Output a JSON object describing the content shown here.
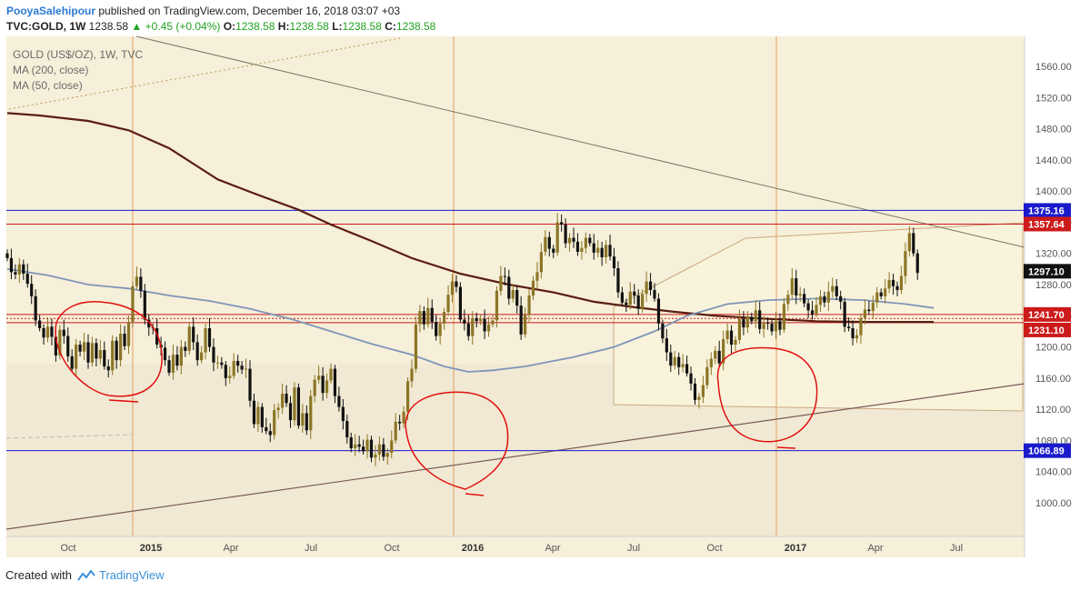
{
  "header": {
    "author": "PooyaSalehipour",
    "published": "published on TradingView.com, December 16, 2018 03:07 +03",
    "symbol": "TVC:GOLD, 1W",
    "last_price": "1238.58",
    "change": "+0.45 (+0.04%)",
    "open_label": "O:",
    "open": "1238.58",
    "high_label": "H:",
    "high": "1238.58",
    "low_label": "L:",
    "low": "1238.58",
    "close_label": "C:",
    "close": "1238.58",
    "up_arrow_icon": "triangle-up-icon"
  },
  "legend": {
    "title": "GOLD (US$/OZ), 1W, TVC",
    "ma200": "MA (200, close)",
    "ma50": "MA (50, close)"
  },
  "footer": {
    "created_with": "Created with",
    "brand": "TradingView",
    "logo_icon": "tradingview-cloud-icon"
  },
  "colors": {
    "background": "#f6efd9",
    "bull_candle": "#8b7626",
    "bear_candle": "#111111",
    "ma200": "#5a1d12",
    "ma50": "#7f95b8",
    "level_blue": "#1a1acc",
    "level_red": "#cc1a1a",
    "circle": "#e01010",
    "vline": "#e0a060"
  },
  "chart_data": {
    "type": "candlestick",
    "title": "GOLD (US$/OZ), 1W, TVC",
    "y_axis": {
      "range": [
        960,
        1600
      ],
      "ticks": [
        1000,
        1040,
        1080,
        1120,
        1160,
        1200,
        1240,
        1280,
        1320,
        1360,
        1400,
        1440,
        1480,
        1520,
        1560
      ],
      "tick_labels": [
        "1000.00",
        "1040.00",
        "1080.00",
        "1120.00",
        "1160.00",
        "1200.00",
        "1240.00",
        "1280.00",
        "1320.00",
        "1360.00",
        "1400.00",
        "1440.00",
        "1480.00",
        "1520.00",
        "1560.00"
      ]
    },
    "x_axis": {
      "ticks": [
        "Oct",
        "2015",
        "Apr",
        "Jul",
        "Oct",
        "2016",
        "Apr",
        "Jul",
        "Oct",
        "2017",
        "Apr",
        "Jul"
      ],
      "bold_ticks": [
        "2015",
        "2016",
        "2017"
      ]
    },
    "weekly_closes": [
      1314,
      1296,
      1293,
      1306,
      1294,
      1281,
      1265,
      1234,
      1224,
      1212,
      1226,
      1213,
      1189,
      1222,
      1214,
      1188,
      1172,
      1203,
      1194,
      1206,
      1180,
      1205,
      1185,
      1196,
      1175,
      1170,
      1208,
      1183,
      1217,
      1201,
      1232,
      1278,
      1290,
      1272,
      1235,
      1225,
      1224,
      1203,
      1199,
      1183,
      1167,
      1190,
      1176,
      1200,
      1195,
      1226,
      1206,
      1183,
      1193,
      1224,
      1200,
      1180,
      1180,
      1177,
      1160,
      1163,
      1182,
      1176,
      1171,
      1172,
      1131,
      1101,
      1123,
      1097,
      1092,
      1087,
      1119,
      1122,
      1140,
      1128,
      1106,
      1148,
      1099,
      1115,
      1093,
      1137,
      1158,
      1163,
      1141,
      1157,
      1172,
      1137,
      1123,
      1105,
      1084,
      1070,
      1075,
      1072,
      1066,
      1081,
      1058,
      1062,
      1075,
      1059,
      1064,
      1080,
      1104,
      1102,
      1117,
      1156,
      1172,
      1229,
      1246,
      1229,
      1250,
      1232,
      1214,
      1230,
      1245,
      1267,
      1284,
      1277,
      1235,
      1230,
      1214,
      1237,
      1233,
      1236,
      1220,
      1229,
      1234,
      1272,
      1291,
      1290,
      1262,
      1273,
      1253,
      1216,
      1241,
      1266,
      1285,
      1296,
      1322,
      1341,
      1326,
      1321,
      1360,
      1357,
      1333,
      1340,
      1335,
      1322,
      1327,
      1340,
      1333,
      1321,
      1327,
      1315,
      1331,
      1316,
      1301,
      1270,
      1257,
      1254,
      1271,
      1266,
      1249,
      1268,
      1284,
      1273,
      1262,
      1230,
      1211,
      1193,
      1176,
      1187,
      1174,
      1178,
      1166,
      1153,
      1132,
      1136,
      1151,
      1174,
      1185,
      1195,
      1179,
      1210,
      1221,
      1203,
      1209,
      1236,
      1225,
      1238,
      1233,
      1247,
      1223,
      1231,
      1230,
      1220,
      1233,
      1222,
      1255,
      1267,
      1288,
      1266,
      1268,
      1256,
      1247,
      1242,
      1254,
      1265,
      1257,
      1271,
      1278,
      1265,
      1258,
      1226,
      1224,
      1211,
      1215,
      1237,
      1248,
      1246,
      1257,
      1270,
      1265,
      1275,
      1286,
      1278,
      1273,
      1291,
      1323,
      1346,
      1320,
      1295
    ],
    "moving_averages": [
      {
        "name": "MA (200, close)",
        "points": [
          [
            0,
            1500
          ],
          [
            8,
            1497
          ],
          [
            20,
            1490
          ],
          [
            30,
            1478
          ],
          [
            40,
            1455
          ],
          [
            52,
            1415
          ],
          [
            62,
            1395
          ],
          [
            72,
            1376
          ],
          [
            80,
            1357
          ],
          [
            90,
            1336
          ],
          [
            100,
            1314
          ],
          [
            112,
            1294
          ],
          [
            124,
            1280
          ],
          [
            135,
            1270
          ],
          [
            145,
            1258
          ],
          [
            155,
            1251
          ],
          [
            165,
            1245
          ],
          [
            175,
            1240
          ],
          [
            188,
            1236
          ],
          [
            200,
            1233
          ],
          [
            212,
            1232
          ],
          [
            220,
            1232
          ],
          [
            229,
            1232
          ]
        ]
      },
      {
        "name": "MA (50, close)",
        "points": [
          [
            0,
            1300
          ],
          [
            10,
            1292
          ],
          [
            20,
            1280
          ],
          [
            30,
            1275
          ],
          [
            40,
            1266
          ],
          [
            50,
            1259
          ],
          [
            60,
            1249
          ],
          [
            70,
            1236
          ],
          [
            80,
            1220
          ],
          [
            90,
            1204
          ],
          [
            100,
            1190
          ],
          [
            108,
            1175
          ],
          [
            114,
            1168
          ],
          [
            120,
            1170
          ],
          [
            128,
            1175
          ],
          [
            140,
            1187
          ],
          [
            150,
            1200
          ],
          [
            160,
            1220
          ],
          [
            168,
            1240
          ],
          [
            178,
            1255
          ],
          [
            188,
            1260
          ],
          [
            200,
            1262
          ],
          [
            212,
            1260
          ],
          [
            222,
            1255
          ],
          [
            229,
            1250
          ]
        ]
      }
    ],
    "horizontal_levels": [
      {
        "value": 1375.16,
        "label": "1375.16",
        "color": "#1a1acc"
      },
      {
        "value": 1357.64,
        "label": "1357.64",
        "color": "#cc1a1a"
      },
      {
        "value": 1297.1,
        "label": "1297.10",
        "color": "#111111"
      },
      {
        "value": 1241.7,
        "label": "1241.70",
        "color": "#cc1a1a"
      },
      {
        "value": 1231.1,
        "label": "1231.10",
        "color": "#cc1a1a"
      },
      {
        "value": 1066.89,
        "label": "1066.89",
        "color": "#1a1acc"
      }
    ]
  }
}
